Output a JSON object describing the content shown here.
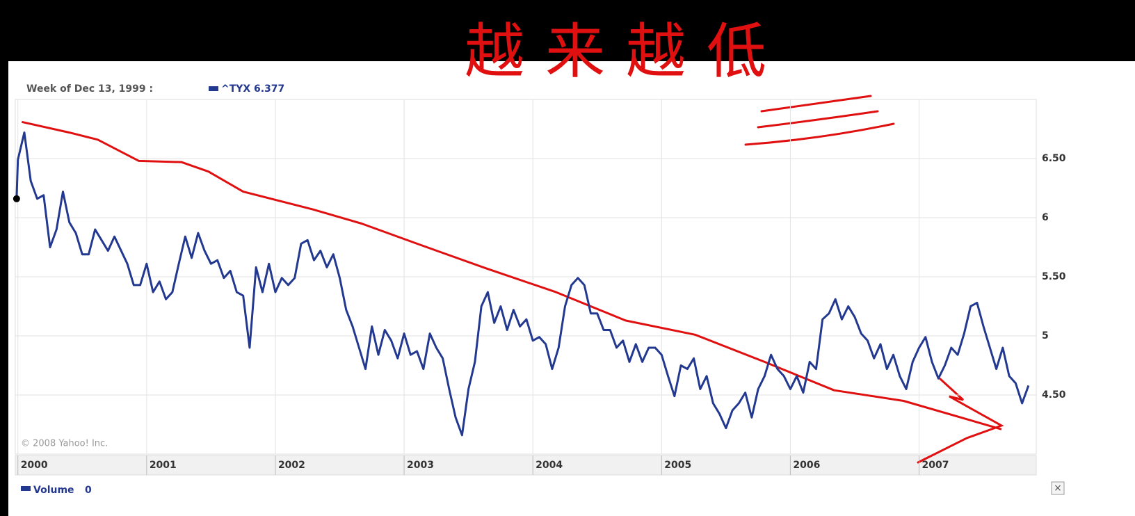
{
  "chart_data": {
    "type": "line",
    "hover_label": "Week of Dec 13, 1999 :",
    "legend_value": 6.377,
    "credit": "© 2008 Yahoo! Inc.",
    "annotation": "越来越低",
    "volume": {
      "name": "Volume",
      "value": 0
    },
    "close_button": "×",
    "xlim": [
      1999.98,
      2007.91
    ],
    "xticks": [
      2000,
      2001,
      2002,
      2003,
      2004,
      2005,
      2006,
      2007
    ],
    "ylim": [
      4.0,
      7.0
    ],
    "yticks": [
      {
        "value": 4.5,
        "label": "4.50"
      },
      5,
      {
        "value": 5.5,
        "label": "5.50"
      },
      6,
      {
        "value": 6.5,
        "label": "6.50"
      }
    ],
    "grid": true,
    "series": [
      {
        "name": "^TYX",
        "color": "#23388f",
        "x": [
          1999.99,
          2000.0,
          2000.05,
          2000.1,
          2000.15,
          2000.2,
          2000.25,
          2000.3,
          2000.35,
          2000.4,
          2000.45,
          2000.5,
          2000.55,
          2000.6,
          2000.65,
          2000.7,
          2000.75,
          2000.85,
          2000.9,
          2000.95,
          2001.0,
          2001.05,
          2001.1,
          2001.15,
          2001.2,
          2001.25,
          2001.3,
          2001.35,
          2001.4,
          2001.45,
          2001.5,
          2001.55,
          2001.6,
          2001.65,
          2001.7,
          2001.75,
          2001.8,
          2001.85,
          2001.9,
          2001.95,
          2002.0,
          2002.05,
          2002.1,
          2002.15,
          2002.2,
          2002.25,
          2002.3,
          2002.35,
          2002.4,
          2002.45,
          2002.5,
          2002.55,
          2002.6,
          2002.65,
          2002.7,
          2002.75,
          2002.8,
          2002.85,
          2002.9,
          2002.95,
          2003.0,
          2003.05,
          2003.1,
          2003.15,
          2003.2,
          2003.25,
          2003.3,
          2003.35,
          2003.4,
          2003.45,
          2003.5,
          2003.55,
          2003.6,
          2003.65,
          2003.7,
          2003.75,
          2003.8,
          2003.85,
          2003.9,
          2003.95,
          2004.0,
          2004.05,
          2004.1,
          2004.15,
          2004.2,
          2004.25,
          2004.3,
          2004.35,
          2004.4,
          2004.45,
          2004.5,
          2004.55,
          2004.6,
          2004.65,
          2004.7,
          2004.75,
          2004.8,
          2004.85,
          2004.9,
          2004.95,
          2005.0,
          2005.05,
          2005.1,
          2005.15,
          2005.2,
          2005.25,
          2005.3,
          2005.35,
          2005.4,
          2005.45,
          2005.5,
          2005.55,
          2005.6,
          2005.65,
          2005.7,
          2005.75,
          2005.8,
          2005.85,
          2005.9,
          2005.95,
          2006.0,
          2006.05,
          2006.1,
          2006.15,
          2006.2,
          2006.25,
          2006.3,
          2006.35,
          2006.4,
          2006.45,
          2006.5,
          2006.55,
          2006.6,
          2006.65,
          2006.7,
          2006.75,
          2006.8,
          2006.85,
          2006.9,
          2006.95,
          2007.0,
          2007.05,
          2007.1,
          2007.15,
          2007.2,
          2007.25,
          2007.3,
          2007.35,
          2007.4,
          2007.45,
          2007.5,
          2007.55,
          2007.6,
          2007.65,
          2007.7,
          2007.75,
          2007.8,
          2007.85
        ],
        "values": [
          6.16,
          6.49,
          6.72,
          6.31,
          6.16,
          6.19,
          5.75,
          5.9,
          6.22,
          5.96,
          5.87,
          5.69,
          5.69,
          5.9,
          5.81,
          5.72,
          5.84,
          5.61,
          5.43,
          5.43,
          5.61,
          5.37,
          5.46,
          5.31,
          5.37,
          5.61,
          5.84,
          5.66,
          5.87,
          5.72,
          5.61,
          5.64,
          5.49,
          5.55,
          5.37,
          5.34,
          4.9,
          5.58,
          5.37,
          5.61,
          5.37,
          5.49,
          5.43,
          5.49,
          5.78,
          5.81,
          5.64,
          5.72,
          5.58,
          5.69,
          5.49,
          5.22,
          5.08,
          4.9,
          4.72,
          5.08,
          4.84,
          5.05,
          4.96,
          4.81,
          5.02,
          4.84,
          4.87,
          4.72,
          5.02,
          4.9,
          4.81,
          4.55,
          4.31,
          4.16,
          4.55,
          4.78,
          5.25,
          5.37,
          5.11,
          5.25,
          5.05,
          5.22,
          5.08,
          5.14,
          4.96,
          4.99,
          4.93,
          4.72,
          4.9,
          5.25,
          5.43,
          5.49,
          5.43,
          5.19,
          5.19,
          5.05,
          5.05,
          4.9,
          4.96,
          4.78,
          4.93,
          4.78,
          4.9,
          4.9,
          4.84,
          4.66,
          4.49,
          4.75,
          4.72,
          4.81,
          4.55,
          4.66,
          4.43,
          4.34,
          4.22,
          4.37,
          4.43,
          4.52,
          4.31,
          4.55,
          4.66,
          4.84,
          4.72,
          4.66,
          4.55,
          4.66,
          4.52,
          4.78,
          4.72,
          5.14,
          5.19,
          5.31,
          5.14,
          5.25,
          5.16,
          5.02,
          4.96,
          4.81,
          4.93,
          4.72,
          4.84,
          4.66,
          4.55,
          4.78,
          4.9,
          4.99,
          4.78,
          4.64,
          4.75,
          4.9,
          4.84,
          5.02,
          5.25,
          5.28,
          5.08,
          4.9,
          4.72,
          4.9,
          4.66,
          4.6,
          4.43,
          4.58
        ]
      },
      {
        "color": "#e01010",
        "x": [
          2000.03,
          2000.4,
          2000.62,
          2000.94,
          2001.27,
          2001.48,
          2001.75,
          2002.29,
          2002.67,
          2003.1,
          2003.64,
          2004.18,
          2004.72,
          2005.26,
          2005.8,
          2006.34,
          2006.88,
          2007.64
        ],
        "values": [
          6.81,
          6.72,
          6.66,
          6.48,
          6.47,
          6.39,
          6.22,
          6.07,
          5.95,
          5.78,
          5.57,
          5.37,
          5.13,
          5.01,
          4.78,
          4.54,
          4.45,
          4.21
        ]
      }
    ]
  }
}
